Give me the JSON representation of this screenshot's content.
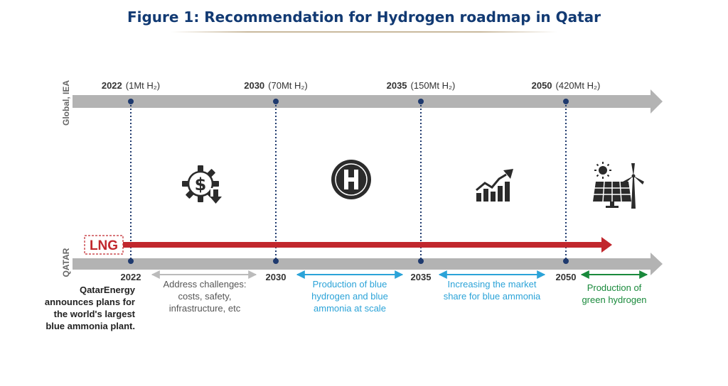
{
  "title": "Figure 1: Recommendation for Hydrogen roadmap in Qatar",
  "rows": {
    "global_label": "Global, IEA",
    "qatar_label": "QATAR"
  },
  "global_milestones": [
    {
      "year": "2022",
      "detail": "(1Mt H₂)"
    },
    {
      "year": "2030",
      "detail": "(70Mt H₂)"
    },
    {
      "year": "2035",
      "detail": "(150Mt H₂)"
    },
    {
      "year": "2050",
      "detail": "(420Mt H₂)"
    }
  ],
  "qatar_years": [
    "2022",
    "2030",
    "2035",
    "2050"
  ],
  "lng_label": "LNG",
  "qatar_note": "QatarEnergy announces plans for the world's largest blue ammonia plant.",
  "phases": [
    {
      "text": "Address challenges: costs, safety, infrastructure, etc",
      "color": "#555555",
      "arrow_color": "#bbbbbb"
    },
    {
      "text": "Production of blue hydrogen and blue ammonia at scale",
      "color": "#2ba3d8",
      "arrow_color": "#2ba3d8"
    },
    {
      "text": "Increasing the market share for blue ammonia",
      "color": "#2ba3d8",
      "arrow_color": "#2ba3d8"
    },
    {
      "text": "Production of green hydrogen",
      "color": "#1a8a3c",
      "arrow_color": "#1a8a3c"
    }
  ],
  "icons": [
    "dollar-gear-icon",
    "hydrogen-h-icon",
    "growth-chart-icon",
    "solar-wind-icon"
  ],
  "colors": {
    "title": "#123a73",
    "axis": "#b3b3b3",
    "marker": "#1f3a6e",
    "lng": "#c1272d"
  }
}
